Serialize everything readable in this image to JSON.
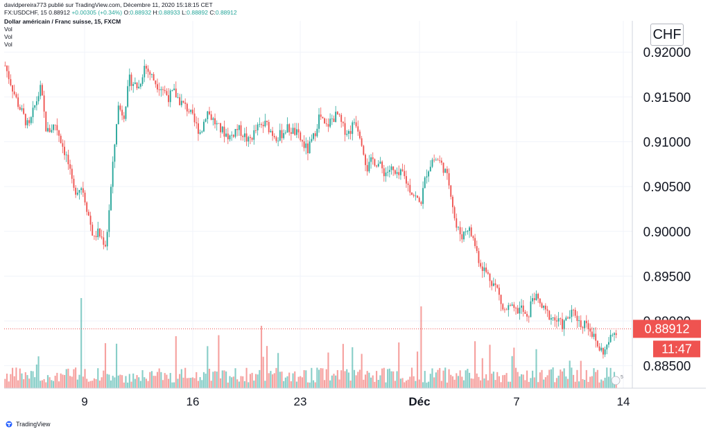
{
  "header": {
    "published": "davidpereira773 publié sur TradingView.com, Décembre 11, 2020 15:18:15 CET",
    "quote_prefix": "FX:USDCHF, 15 0.88912 ",
    "quote_change": "+0.00305 (+0.34%)",
    "quote_o_label": " O:",
    "quote_o": "0.88932",
    "quote_h_label": " H:",
    "quote_h": "0.88933",
    "quote_l_label": " L:",
    "quote_l": "0.88892",
    "quote_c_label": " C:",
    "quote_c": "0.88912",
    "instrument": "Dollar américain / Franc suisse, 15, FXCM",
    "vol_labels": [
      "Vol",
      "Vol",
      "Vol"
    ]
  },
  "currency": "CHF",
  "footer": {
    "brand": "TradingView"
  },
  "colors": {
    "up": "#26a69a",
    "down": "#ef5350",
    "price_tag": "#ef5350",
    "grid": "#f0f3fa",
    "axis_text": "#131722"
  },
  "chart_data": {
    "type": "candlestick",
    "x_ticks": [
      "9",
      "16",
      "23",
      "Déc",
      "7",
      "14"
    ],
    "y_ticks": [
      "0.92000",
      "0.91500",
      "0.91000",
      "0.90500",
      "0.90000",
      "0.89500",
      "0.89000",
      "0.88500"
    ],
    "y_range": [
      0.8825,
      0.9235
    ],
    "last_price": "0.88912",
    "last_price_value": 0.88912,
    "countdown": "11:47",
    "volume_scale_label": "5",
    "price_path": [
      [
        0,
        0.9185
      ],
      [
        4,
        0.9145
      ],
      [
        8,
        0.9115
      ],
      [
        10,
        0.914
      ],
      [
        12,
        0.916
      ],
      [
        14,
        0.911
      ],
      [
        17,
        0.912
      ],
      [
        19,
        0.91
      ],
      [
        21,
        0.908
      ],
      [
        23,
        0.9045
      ],
      [
        26,
        0.905
      ],
      [
        28,
        0.902
      ],
      [
        30,
        0.899
      ],
      [
        31,
        0.9
      ],
      [
        34,
        0.8985
      ],
      [
        36,
        0.906
      ],
      [
        38,
        0.914
      ],
      [
        40,
        0.913
      ],
      [
        42,
        0.917
      ],
      [
        45,
        0.916
      ],
      [
        47,
        0.9185
      ],
      [
        49,
        0.9175
      ],
      [
        51,
        0.9165
      ],
      [
        53,
        0.916
      ],
      [
        55,
        0.915
      ],
      [
        57,
        0.9155
      ],
      [
        59,
        0.9145
      ],
      [
        62,
        0.9135
      ],
      [
        64,
        0.912
      ],
      [
        66,
        0.911
      ],
      [
        68,
        0.9135
      ],
      [
        70,
        0.9125
      ],
      [
        72,
        0.9115
      ],
      [
        74,
        0.911
      ],
      [
        76,
        0.9105
      ],
      [
        78,
        0.9115
      ],
      [
        80,
        0.911
      ],
      [
        82,
        0.91
      ],
      [
        85,
        0.9115
      ],
      [
        88,
        0.912
      ],
      [
        90,
        0.911
      ],
      [
        92,
        0.9105
      ],
      [
        95,
        0.9115
      ],
      [
        98,
        0.911
      ],
      [
        100,
        0.91
      ],
      [
        102,
        0.909
      ],
      [
        104,
        0.9105
      ],
      [
        106,
        0.913
      ],
      [
        108,
        0.9115
      ],
      [
        110,
        0.9125
      ],
      [
        112,
        0.913
      ],
      [
        114,
        0.9115
      ],
      [
        116,
        0.911
      ],
      [
        118,
        0.9125
      ],
      [
        120,
        0.9105
      ],
      [
        122,
        0.907
      ],
      [
        124,
        0.908
      ],
      [
        126,
        0.9075
      ],
      [
        128,
        0.9065
      ],
      [
        130,
        0.907
      ],
      [
        132,
        0.906
      ],
      [
        134,
        0.9065
      ],
      [
        136,
        0.905
      ],
      [
        138,
        0.904
      ],
      [
        140,
        0.903
      ],
      [
        142,
        0.9065
      ],
      [
        144,
        0.908
      ],
      [
        146,
        0.908
      ],
      [
        148,
        0.907
      ],
      [
        150,
        0.905
      ],
      [
        152,
        0.9005
      ],
      [
        154,
        0.8995
      ],
      [
        156,
        0.9005
      ],
      [
        158,
        0.899
      ],
      [
        160,
        0.8965
      ],
      [
        162,
        0.8955
      ],
      [
        164,
        0.8945
      ],
      [
        166,
        0.8935
      ],
      [
        168,
        0.891
      ],
      [
        170,
        0.8915
      ],
      [
        172,
        0.891
      ],
      [
        174,
        0.8915
      ],
      [
        176,
        0.89
      ],
      [
        178,
        0.893
      ],
      [
        180,
        0.892
      ],
      [
        182,
        0.891
      ],
      [
        184,
        0.8905
      ],
      [
        186,
        0.89
      ],
      [
        188,
        0.8895
      ],
      [
        190,
        0.8905
      ],
      [
        192,
        0.891
      ],
      [
        194,
        0.8895
      ],
      [
        196,
        0.89
      ],
      [
        198,
        0.8885
      ],
      [
        200,
        0.887
      ],
      [
        202,
        0.8865
      ],
      [
        204,
        0.888
      ],
      [
        206,
        0.889
      ]
    ]
  }
}
